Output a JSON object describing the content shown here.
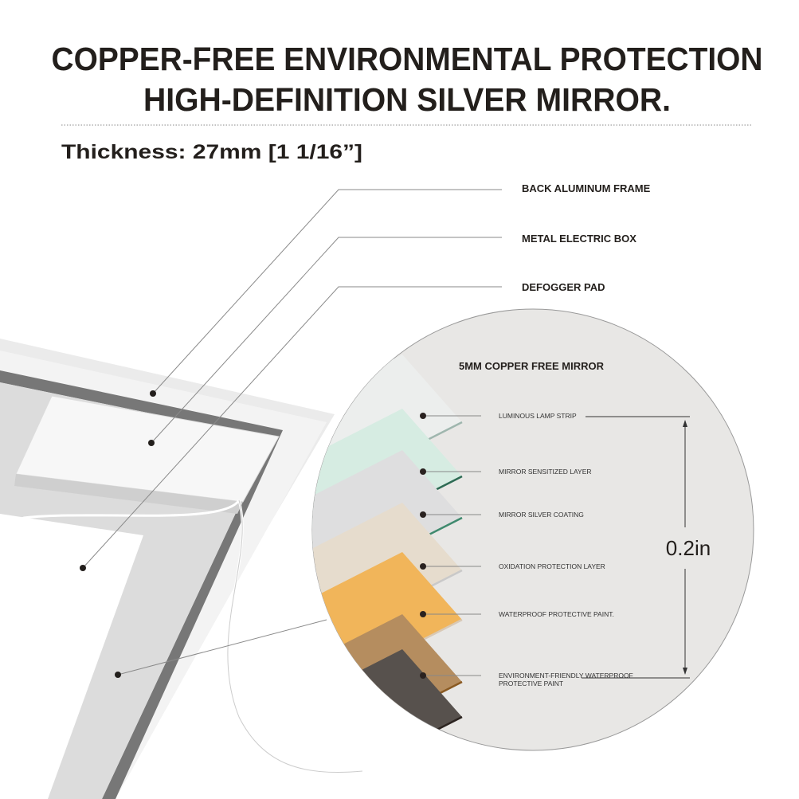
{
  "title": {
    "line1": "COPPER-FREE ENVIRONMENTAL PROTECTION",
    "line2": "HIGH-DEFINITION SILVER MIRROR."
  },
  "thickness": "Thickness: 27mm [1 1/16”]",
  "callouts": [
    "BACK ALUMINUM FRAME",
    "METAL ELECTRIC BOX",
    "DEFOGGER PAD"
  ],
  "detail": {
    "title": "5MM COPPER FREE MIRROR",
    "dimension": "0.2in",
    "layers": [
      {
        "label": "LUMINOUS LAMP STRIP",
        "color": "#eceeed"
      },
      {
        "label": "MIRROR SENSITIZED LAYER",
        "color": "#d6ece2"
      },
      {
        "label": "MIRROR SILVER COATING",
        "color": "#dededf"
      },
      {
        "label": "OXIDATION PROTECTION LAYER",
        "color": "#e6dccd"
      },
      {
        "label": "WATERPROOF PROTECTIVE PAINT.",
        "color": "#f1b55a"
      },
      {
        "label": "ENVIRONMENT-FRIENDLY WATERPROOF",
        "label2": "PROTECTIVE PAINT",
        "color": "#b58d5f"
      },
      {
        "label": "",
        "color": "#57514d"
      }
    ]
  }
}
